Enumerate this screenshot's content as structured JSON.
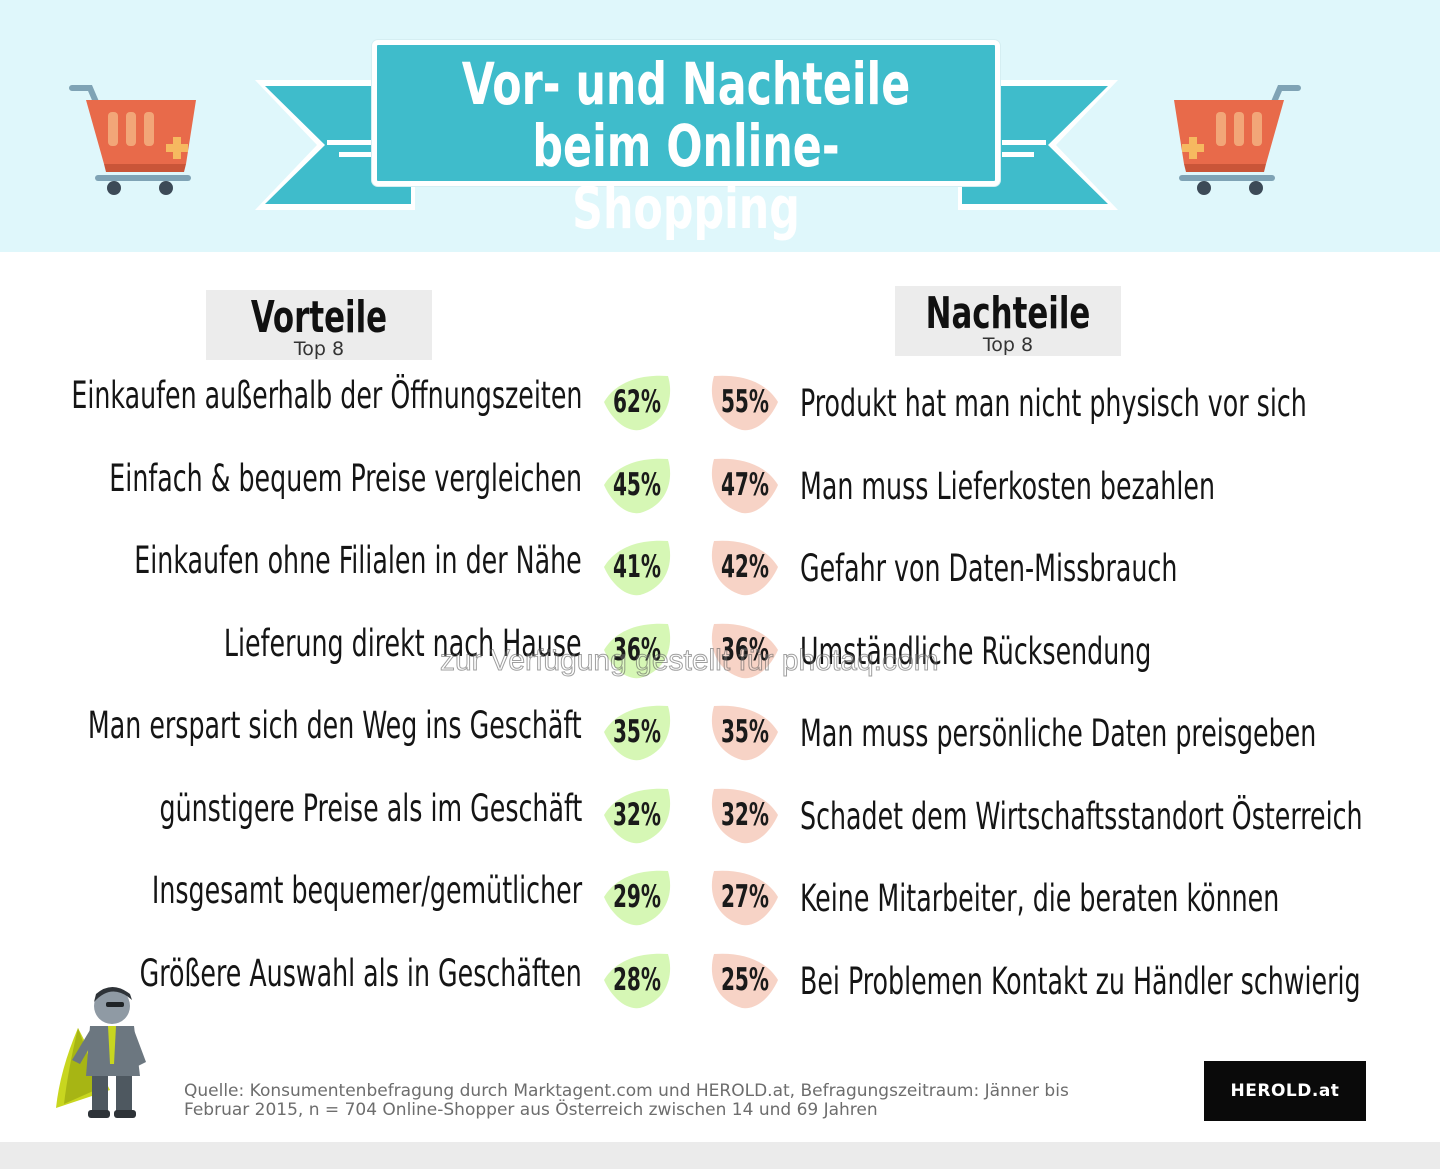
{
  "header": {
    "title_line1": "Vor- und Nachteile",
    "title_line2": "beim Online-Shopping"
  },
  "colors": {
    "band": "#dff7fb",
    "ribbon": "#3fbccb",
    "advantage_leaf": "#d6f7b5",
    "disadvantage_leaf": "#f7d3c6",
    "cart": "#e86a4a"
  },
  "chart_data": {
    "type": "table",
    "columns": [
      {
        "title": "Vorteile",
        "subtitle": "Top 8"
      },
      {
        "title": "Nachteile",
        "subtitle": "Top 8"
      }
    ],
    "advantages": [
      {
        "label": "Einkaufen außerhalb der Öffnungszeiten",
        "value": 62,
        "display": "62%"
      },
      {
        "label": "Einfach & bequem Preise vergleichen",
        "value": 45,
        "display": "45%"
      },
      {
        "label": "Einkaufen ohne Filialen in der Nähe",
        "value": 41,
        "display": "41%"
      },
      {
        "label": "Lieferung direkt nach Hause",
        "value": 36,
        "display": "36%"
      },
      {
        "label": "Man erspart sich den Weg ins Geschäft",
        "value": 35,
        "display": "35%"
      },
      {
        "label": "günstigere Preise als  im Geschäft",
        "value": 32,
        "display": "32%"
      },
      {
        "label": "Insgesamt bequemer/gemütlicher",
        "value": 29,
        "display": "29%"
      },
      {
        "label": "Größere Auswahl als in Geschäften",
        "value": 28,
        "display": "28%"
      }
    ],
    "disadvantages": [
      {
        "label": "Produkt hat man nicht physisch vor sich",
        "value": 55,
        "display": "55%"
      },
      {
        "label": "Man muss Lieferkosten bezahlen",
        "value": 47,
        "display": "47%"
      },
      {
        "label": "Gefahr von Daten-Missbrauch",
        "value": 42,
        "display": "42%"
      },
      {
        "label": "Umständliche Rücksendung",
        "value": 36,
        "display": "36%"
      },
      {
        "label": "Man muss persönliche Daten preisgeben",
        "value": 35,
        "display": "35%"
      },
      {
        "label": "Schadet dem Wirtschaftsstandort Österreich",
        "value": 32,
        "display": "32%"
      },
      {
        "label": "Keine Mitarbeiter, die beraten können",
        "value": 27,
        "display": "27%"
      },
      {
        "label": "Bei Problemen Kontakt zu Händler schwierig",
        "value": 25,
        "display": "25%"
      }
    ]
  },
  "watermark": "zur Verfügung gestellt für photaq.com",
  "footer": {
    "source_line1": "Quelle: Konsumentenbefragung durch Marktagent.com und HEROLD.at, Befragungszeitraum: Jänner bis",
    "source_line2": "Februar 2015, n = 704 Online-Shopper aus Österreich zwischen 14 und 69 Jahren",
    "logo_text": "HEROLD.at"
  }
}
